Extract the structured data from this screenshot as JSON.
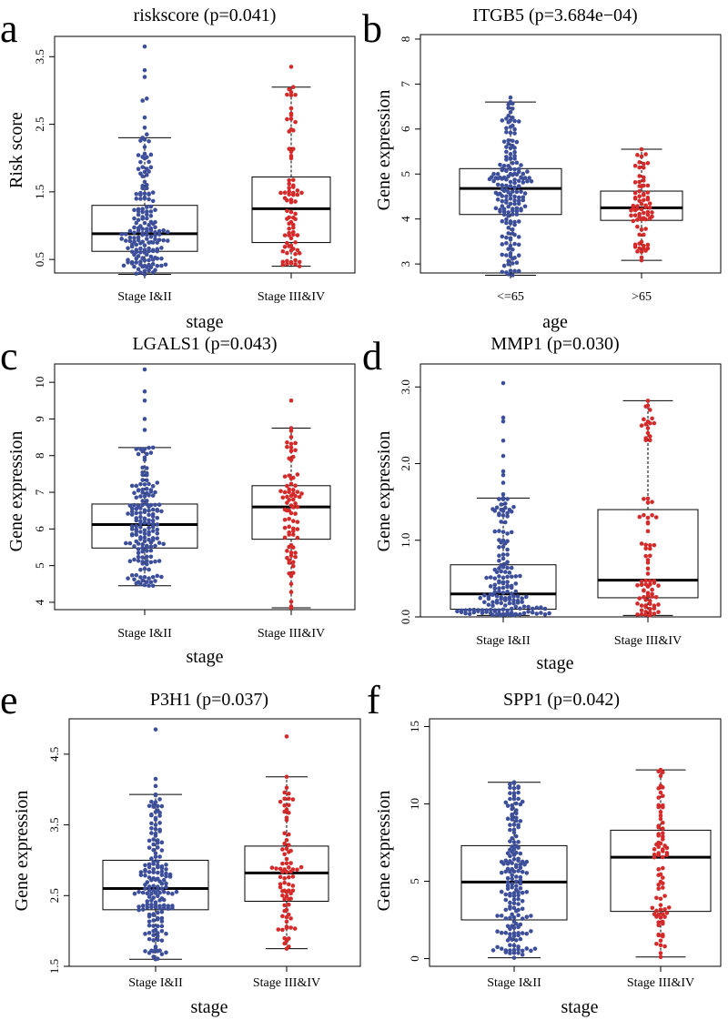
{
  "colors": {
    "group1": "#3d4f9a",
    "group2": "#d42a2a",
    "axis": "#000000"
  },
  "chart_data": [
    {
      "type": "box-swarm",
      "panel": "a",
      "title": "riskscore (p=0.041)",
      "xlabel": "stage",
      "ylabel": "Risk score",
      "ylim": [
        0.3,
        3.8
      ],
      "yticks": [
        0.5,
        1.5,
        2.5,
        3.5
      ],
      "ytick_labels": [
        "0.5",
        "1.5",
        "2.5",
        "3.5"
      ],
      "categories": [
        "Stage I&II",
        "Stage III&IV"
      ],
      "groups": [
        {
          "name": "Stage I&II",
          "n": 170,
          "whisker_low": 0.28,
          "q1": 0.62,
          "median": 0.88,
          "q3": 1.3,
          "whisker_high": 2.3,
          "outliers": [
            2.35,
            2.45,
            2.6,
            2.85,
            2.88,
            3.2,
            3.3,
            3.65
          ]
        },
        {
          "name": "Stage III&IV",
          "n": 80,
          "whisker_low": 0.4,
          "q1": 0.75,
          "median": 1.25,
          "q3": 1.72,
          "whisker_high": 3.05,
          "outliers": [
            3.35
          ]
        }
      ]
    },
    {
      "type": "box-swarm",
      "panel": "b",
      "title": "ITGB5 (p=3.684e−04)",
      "xlabel": "age",
      "ylabel": "Gene expression",
      "ylim": [
        2.8,
        8.1
      ],
      "yticks": [
        3,
        4,
        5,
        6,
        7,
        8
      ],
      "ytick_labels": [
        "3",
        "4",
        "5",
        "6",
        "7",
        "8"
      ],
      "categories": [
        "<=65",
        ">65"
      ],
      "groups": [
        {
          "name": "<=65",
          "n": 180,
          "whisker_low": 2.75,
          "q1": 4.1,
          "median": 4.68,
          "q3": 5.12,
          "whisker_high": 6.6,
          "outliers": [
            6.7
          ]
        },
        {
          "name": ">65",
          "n": 75,
          "whisker_low": 3.08,
          "q1": 3.97,
          "median": 4.25,
          "q3": 4.62,
          "whisker_high": 5.55,
          "outliers": []
        }
      ]
    },
    {
      "type": "box-swarm",
      "panel": "c",
      "title": "LGALS1 (p=0.043)",
      "xlabel": "stage",
      "ylabel": "Gene expression",
      "ylim": [
        3.8,
        10.5
      ],
      "yticks": [
        4,
        5,
        6,
        7,
        8,
        9,
        10
      ],
      "ytick_labels": [
        "4",
        "5",
        "6",
        "7",
        "8",
        "9",
        "10"
      ],
      "categories": [
        "Stage I&II",
        "Stage III&IV"
      ],
      "groups": [
        {
          "name": "Stage I&II",
          "n": 170,
          "whisker_low": 4.45,
          "q1": 5.48,
          "median": 6.12,
          "q3": 6.68,
          "whisker_high": 8.22,
          "outliers": [
            8.7,
            9.0,
            9.5,
            9.75,
            10.35
          ]
        },
        {
          "name": "Stage III&IV",
          "n": 80,
          "whisker_low": 3.85,
          "q1": 5.72,
          "median": 6.6,
          "q3": 7.18,
          "whisker_high": 8.75,
          "outliers": [
            9.5
          ]
        }
      ]
    },
    {
      "type": "box-swarm",
      "panel": "d",
      "title": "MMP1 (p=0.030)",
      "xlabel": "stage",
      "ylabel": "Gene expression",
      "ylim": [
        0.0,
        3.3
      ],
      "yticks": [
        0.0,
        1.0,
        2.0,
        3.0
      ],
      "ytick_labels": [
        "0.0",
        "1.0",
        "2.0",
        "3.0"
      ],
      "categories": [
        "Stage I&II",
        "Stage III&IV"
      ],
      "groups": [
        {
          "name": "Stage I&II",
          "n": 170,
          "whisker_low": 0.02,
          "q1": 0.1,
          "median": 0.3,
          "q3": 0.68,
          "whisker_high": 1.55,
          "outliers": [
            1.6,
            1.75,
            1.85,
            1.9,
            2.1,
            2.3,
            2.55,
            2.6,
            3.05
          ]
        },
        {
          "name": "Stage III&IV",
          "n": 80,
          "whisker_low": 0.02,
          "q1": 0.25,
          "median": 0.48,
          "q3": 1.4,
          "whisker_high": 2.82,
          "outliers": []
        }
      ]
    },
    {
      "type": "box-swarm",
      "panel": "e",
      "title": "P3H1 (p=0.037)",
      "xlabel": "stage",
      "ylabel": "Gene expression",
      "ylim": [
        1.5,
        5.0
      ],
      "yticks": [
        1.5,
        2.5,
        3.5,
        4.5
      ],
      "ytick_labels": [
        "1.5",
        "2.5",
        "3.5",
        "4.5"
      ],
      "categories": [
        "Stage I&II",
        "Stage III&IV"
      ],
      "groups": [
        {
          "name": "Stage I&II",
          "n": 170,
          "whisker_low": 1.6,
          "q1": 2.3,
          "median": 2.6,
          "q3": 3.0,
          "whisker_high": 3.93,
          "outliers": [
            4.05,
            4.15,
            4.85
          ]
        },
        {
          "name": "Stage III&IV",
          "n": 80,
          "whisker_low": 1.75,
          "q1": 2.42,
          "median": 2.82,
          "q3": 3.2,
          "whisker_high": 4.18,
          "outliers": [
            4.75
          ]
        }
      ]
    },
    {
      "type": "box-swarm",
      "panel": "f",
      "title": "SPP1 (p=0.042)",
      "xlabel": "stage",
      "ylabel": "Gene expression",
      "ylim": [
        -0.5,
        15.5
      ],
      "yticks": [
        0,
        5,
        10,
        15
      ],
      "ytick_labels": [
        "0",
        "5",
        "10",
        "15"
      ],
      "categories": [
        "Stage I&II",
        "Stage III&IV"
      ],
      "groups": [
        {
          "name": "Stage I&II",
          "n": 170,
          "whisker_low": 0.05,
          "q1": 2.5,
          "median": 4.95,
          "q3": 7.3,
          "whisker_high": 11.4,
          "outliers": []
        },
        {
          "name": "Stage III&IV",
          "n": 80,
          "whisker_low": 0.1,
          "q1": 3.05,
          "median": 6.55,
          "q3": 8.3,
          "whisker_high": 12.2,
          "outliers": []
        }
      ]
    }
  ]
}
